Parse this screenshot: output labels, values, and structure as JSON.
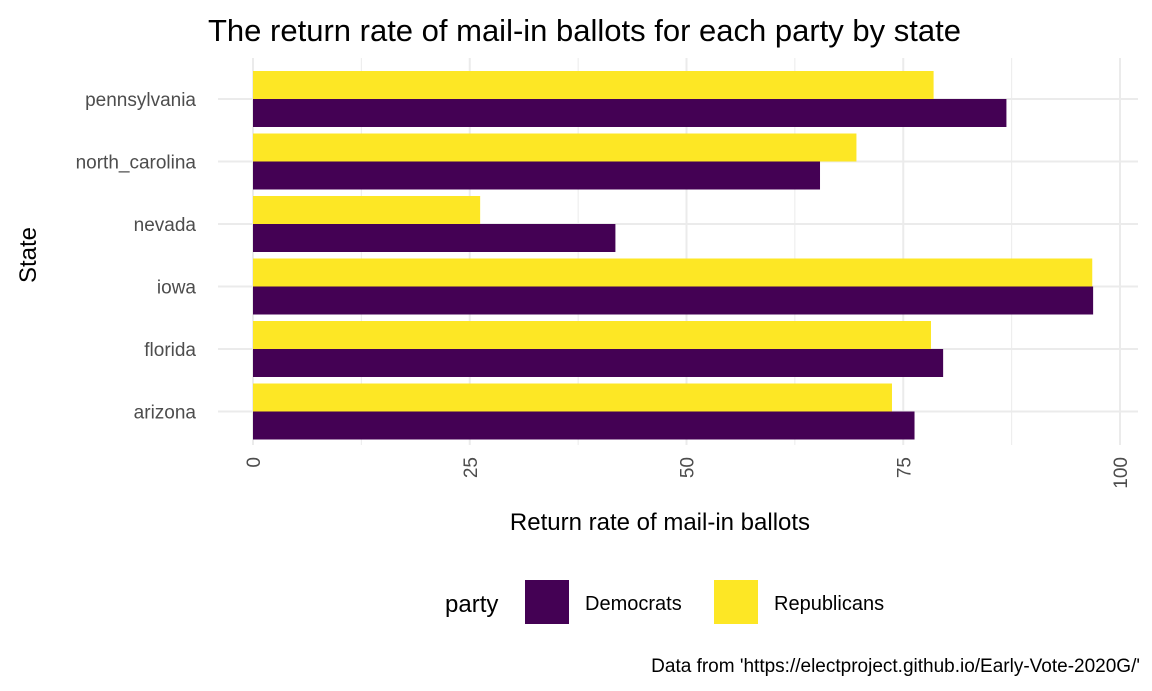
{
  "chart_data": {
    "type": "bar",
    "orientation": "horizontal",
    "title": "The return rate of mail-in ballots for each party by state",
    "xlabel": "Return rate of mail-in ballots",
    "ylabel": "State",
    "categories": [
      "pennsylvania",
      "north_carolina",
      "nevada",
      "iowa",
      "florida",
      "arizona"
    ],
    "series": [
      {
        "name": "Democrats",
        "color": "#440154",
        "values": [
          86.9,
          65.4,
          41.8,
          96.9,
          79.6,
          76.3
        ]
      },
      {
        "name": "Republicans",
        "color": "#FDE725",
        "values": [
          78.5,
          69.6,
          26.2,
          96.8,
          78.2,
          73.7
        ]
      }
    ],
    "xlim": [
      0,
      100
    ],
    "xticks": [
      0,
      25,
      50,
      75,
      100
    ],
    "xtick_labels": [
      "0",
      "25",
      "50",
      "75",
      "100"
    ],
    "grid": true,
    "legend": {
      "title": "party",
      "position": "bottom"
    },
    "caption": "Data from 'https://electproject.github.io/Early-Vote-2020G/'"
  }
}
